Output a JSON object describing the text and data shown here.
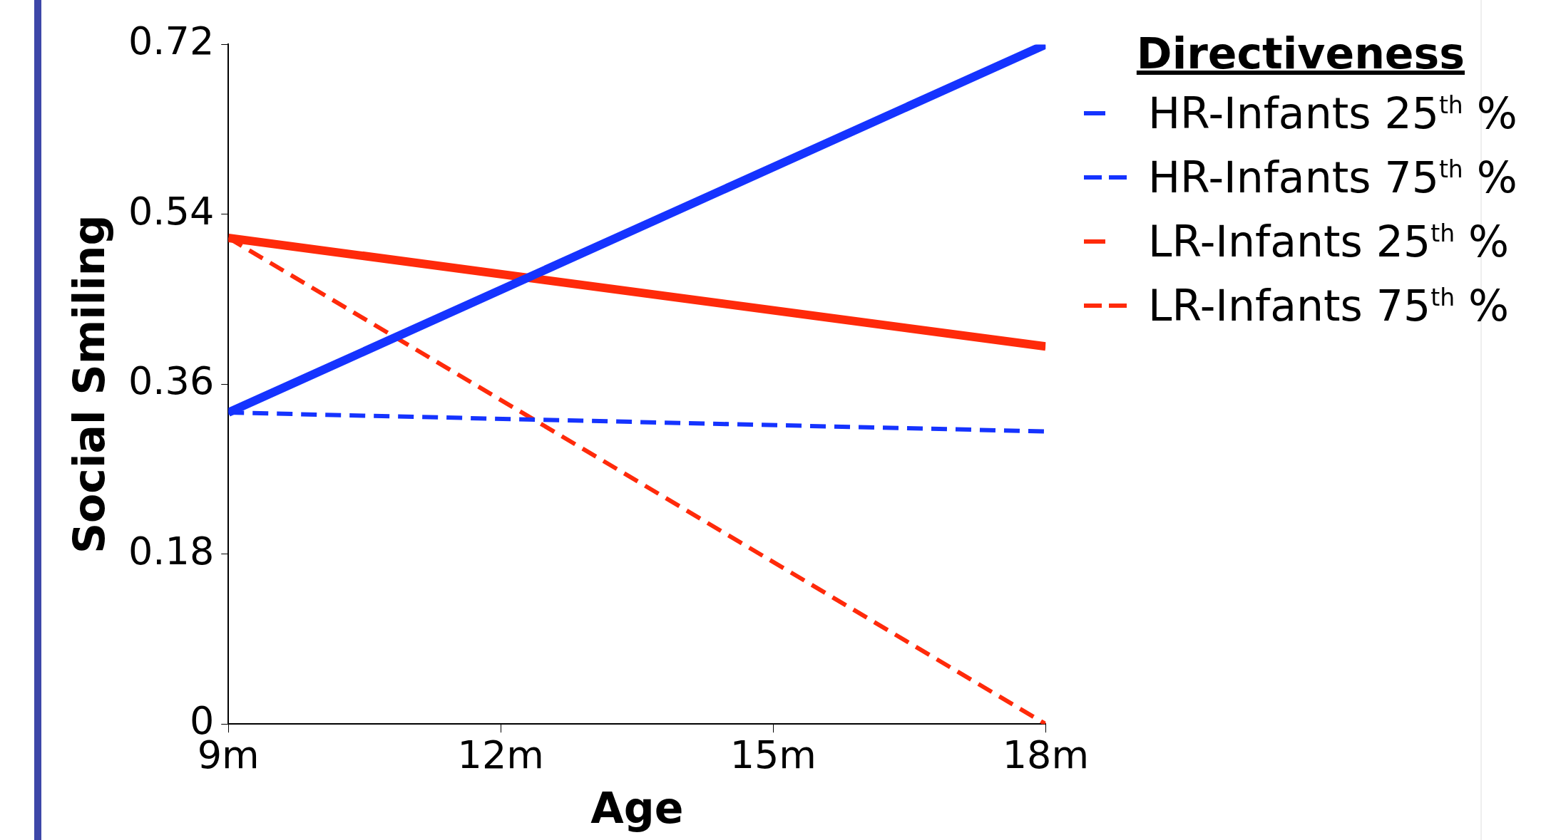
{
  "chart_data": {
    "type": "line",
    "xlabel": "Age",
    "ylabel": "Social Smiling",
    "legend_title": "Directiveness",
    "legend": "top right",
    "grid": false,
    "marker": "none",
    "x": [
      9,
      18
    ],
    "xlim": [
      9,
      18
    ],
    "xticks": [
      {
        "value": 9,
        "label": "9m"
      },
      {
        "value": 12,
        "label": "12m"
      },
      {
        "value": 15,
        "label": "15m"
      },
      {
        "value": 18,
        "label": "18m"
      }
    ],
    "ylim": [
      0,
      0.72
    ],
    "yticks": [
      0,
      0.18,
      0.36,
      0.54,
      0.72
    ],
    "series": [
      {
        "name": "HR-Infants 25$^{th}$ %",
        "color": "#1533ff",
        "line_style": "solid",
        "values": [
          0.33,
          0.72
        ]
      },
      {
        "name": "HR-Infants 75$^{th}$ %",
        "color": "#1533ff",
        "line_style": "dashed",
        "values": [
          0.33,
          0.31
        ]
      },
      {
        "name": "LR-Infants 25$^{th}$ %",
        "color": "#ff2a0a",
        "line_style": "solid",
        "values": [
          0.515,
          0.4
        ]
      },
      {
        "name": "LR-Infants 75$^{th}$ %",
        "color": "#ff2a0a",
        "line_style": "dashed",
        "values": [
          0.515,
          0
        ]
      }
    ]
  }
}
